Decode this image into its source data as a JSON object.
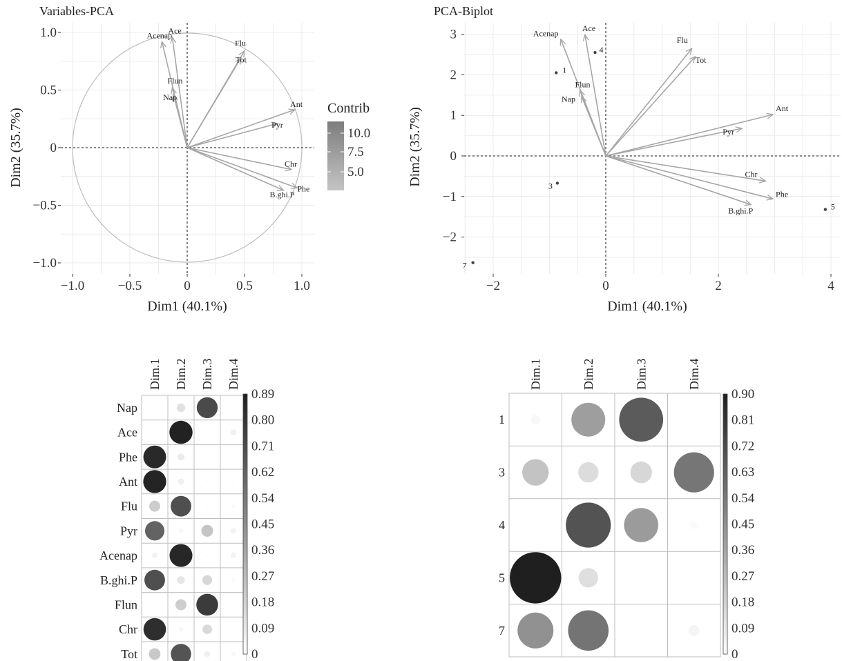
{
  "chart_data": [
    {
      "type": "scatter",
      "title": "Variables-PCA",
      "xlabel": "Dim1 (40.1%)",
      "ylabel": "Dim2 (35.7%)",
      "xlim": [
        -1.0,
        1.0
      ],
      "ylim": [
        -1.0,
        1.0
      ],
      "xticks": [
        "−1.0",
        "−0.5",
        "0",
        "0.5",
        "1.0"
      ],
      "yticks": [
        "−1.0",
        "−0.5",
        "0",
        "0.5",
        "1.0"
      ],
      "legend_title": "Contrib",
      "legend_ticks": [
        "10.0",
        "7.5",
        "5.0"
      ],
      "unit_circle": true,
      "grid": true,
      "vectors": [
        {
          "name": "Ace",
          "x": -0.13,
          "y": 0.96
        },
        {
          "name": "Acenap",
          "x": -0.22,
          "y": 0.92
        },
        {
          "name": "Flu",
          "x": 0.5,
          "y": 0.84
        },
        {
          "name": "Tot",
          "x": 0.47,
          "y": 0.78
        },
        {
          "name": "Flun",
          "x": -0.13,
          "y": 0.52
        },
        {
          "name": "Nap",
          "x": -0.12,
          "y": 0.46
        },
        {
          "name": "Ant",
          "x": 0.94,
          "y": 0.33
        },
        {
          "name": "Pyr",
          "x": 0.79,
          "y": 0.21
        },
        {
          "name": "Chr",
          "x": 0.91,
          "y": -0.19
        },
        {
          "name": "Phe",
          "x": 0.96,
          "y": -0.35
        },
        {
          "name": "B.ghi.P",
          "x": 0.84,
          "y": -0.37
        }
      ]
    },
    {
      "type": "scatter",
      "title": "PCA-Biplot",
      "xlabel": "Dim1 (40.1%)",
      "ylabel": "Dim2 (35.7%)",
      "xlim": [
        -2.5,
        4.0
      ],
      "ylim": [
        -2.7,
        3.1
      ],
      "xticks": [
        "−2",
        "0",
        "2",
        "4"
      ],
      "yticks": [
        "−2",
        "−1",
        "0",
        "1",
        "2",
        "3"
      ],
      "grid": true,
      "vectors": [
        {
          "name": "Ace",
          "x": -0.37,
          "y": 2.99
        },
        {
          "name": "Acenap",
          "x": -0.8,
          "y": 2.88
        },
        {
          "name": "Flu",
          "x": 1.53,
          "y": 2.65
        },
        {
          "name": "Tot",
          "x": 1.59,
          "y": 2.45
        },
        {
          "name": "Flun",
          "x": -0.46,
          "y": 1.62
        },
        {
          "name": "Nap",
          "x": -0.43,
          "y": 1.47
        },
        {
          "name": "Ant",
          "x": 2.97,
          "y": 1.02
        },
        {
          "name": "Pyr",
          "x": 2.42,
          "y": 0.68
        },
        {
          "name": "Chr",
          "x": 2.84,
          "y": -0.62
        },
        {
          "name": "Phe",
          "x": 2.97,
          "y": -1.06
        },
        {
          "name": "B.ghi.P",
          "x": 2.58,
          "y": -1.2
        }
      ],
      "points": [
        {
          "label": "1",
          "x": -0.88,
          "y": 2.05
        },
        {
          "label": "3",
          "x": -0.86,
          "y": -0.67
        },
        {
          "label": "4",
          "x": -0.19,
          "y": 2.55
        },
        {
          "label": "5",
          "x": 3.9,
          "y": -1.32
        },
        {
          "label": "7",
          "x": -2.36,
          "y": -2.63
        }
      ]
    },
    {
      "type": "heatmap",
      "columns": [
        "Dim.1",
        "Dim.2",
        "Dim.3",
        "Dim.4"
      ],
      "rows": [
        "Nap",
        "Ace",
        "Phe",
        "Ant",
        "Flu",
        "Pyr",
        "Acenap",
        "B.ghi.P",
        "Flun",
        "Chr",
        "Tot"
      ],
      "values": [
        [
          0.01,
          0.12,
          0.72,
          0.01
        ],
        [
          0.01,
          0.88,
          0.0,
          0.06
        ],
        [
          0.85,
          0.08,
          0.0,
          0.01
        ],
        [
          0.87,
          0.06,
          0.01,
          0.01
        ],
        [
          0.2,
          0.7,
          0.01,
          0.02
        ],
        [
          0.62,
          0.03,
          0.23,
          0.05
        ],
        [
          0.05,
          0.86,
          0.01,
          0.05
        ],
        [
          0.7,
          0.1,
          0.16,
          0.02
        ],
        [
          0.01,
          0.2,
          0.78,
          0.0
        ],
        [
          0.83,
          0.03,
          0.15,
          0.0
        ],
        [
          0.22,
          0.68,
          0.06,
          0.03
        ]
      ],
      "scale_max": 0.89,
      "legend_ticks": [
        "0.89",
        "0.80",
        "0.71",
        "0.62",
        "0.54",
        "0.45",
        "0.36",
        "0.27",
        "0.18",
        "0.09",
        "0"
      ]
    },
    {
      "type": "heatmap",
      "columns": [
        "Dim.1",
        "Dim.2",
        "Dim.3",
        "Dim.4"
      ],
      "rows": [
        "1",
        "3",
        "4",
        "5",
        "7"
      ],
      "values": [
        [
          0.03,
          0.39,
          0.66,
          0.0
        ],
        [
          0.24,
          0.14,
          0.16,
          0.55
        ],
        [
          0.0,
          0.69,
          0.4,
          0.02
        ],
        [
          0.9,
          0.13,
          0.0,
          0.0
        ],
        [
          0.44,
          0.56,
          0.0,
          0.04
        ]
      ],
      "scale_max": 0.9,
      "legend_ticks": [
        "0.90",
        "0.81",
        "0.72",
        "0.63",
        "0.54",
        "0.45",
        "0.36",
        "0.27",
        "0.18",
        "0.09",
        "0"
      ]
    }
  ]
}
